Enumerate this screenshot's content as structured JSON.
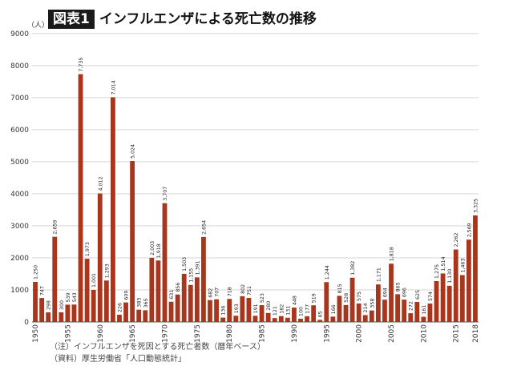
{
  "title": {
    "box": "図表1",
    "text": "インフルエンザによる死亡数の推移"
  },
  "notes": [
    "（注）インフルエンザを死因とする死亡者数（暦年ベース）",
    "（資料）厚生労働省「人口動態統計」"
  ],
  "chart_data": {
    "type": "bar",
    "title": "インフルエンザによる死亡数の推移",
    "ylabel": "（人）",
    "xlabel": "",
    "ylim": [
      0,
      9000
    ],
    "yticks": [
      "0",
      "1000",
      "2000",
      "3000",
      "4000",
      "5000",
      "6000",
      "7000",
      "8000",
      "9000"
    ],
    "x_tick_labels": [
      "1950",
      "1955",
      "1960",
      "1965",
      "1970",
      "1975",
      "1980",
      "1985",
      "1990",
      "1995",
      "2000",
      "2005",
      "2010",
      "2015",
      "2018"
    ],
    "bar_color": "#a8361d",
    "grid": true,
    "categories": [
      1950,
      1951,
      1952,
      1953,
      1954,
      1955,
      1956,
      1957,
      1958,
      1959,
      1960,
      1961,
      1962,
      1963,
      1964,
      1965,
      1966,
      1967,
      1968,
      1969,
      1970,
      1971,
      1972,
      1973,
      1974,
      1975,
      1976,
      1977,
      1978,
      1979,
      1980,
      1981,
      1982,
      1983,
      1984,
      1985,
      1986,
      1987,
      1988,
      1989,
      1990,
      1991,
      1992,
      1993,
      1994,
      1995,
      1996,
      1997,
      1998,
      1999,
      2000,
      2001,
      2002,
      2003,
      2004,
      2005,
      2006,
      2007,
      2008,
      2009,
      2010,
      2011,
      2012,
      2013,
      2014,
      2015,
      2016,
      2017,
      2018
    ],
    "values": [
      1250,
      747,
      298,
      2659,
      300,
      539,
      543,
      7735,
      1973,
      1001,
      4012,
      1293,
      7014,
      226,
      609,
      5024,
      383,
      365,
      2003,
      1918,
      3707,
      631,
      856,
      1503,
      1155,
      1391,
      2654,
      682,
      707,
      136,
      718,
      193,
      802,
      751,
      191,
      523,
      280,
      121,
      182,
      131,
      448,
      100,
      177,
      519,
      65,
      1244,
      166,
      815,
      528,
      1382,
      575,
      214,
      358,
      1171,
      694,
      1818,
      865,
      696,
      272,
      625,
      161,
      574,
      1275,
      1514,
      1130,
      2262,
      1463,
      2569,
      3325
    ],
    "labels": [
      "1,250",
      "747",
      "298",
      "2,659",
      "300",
      "539",
      "543",
      "7,735",
      "1,973",
      "1,001",
      "4,012",
      "1,293",
      "7,014",
      "226",
      "609",
      "5,024",
      "383",
      "365",
      "2,003",
      "1,918",
      "3,707",
      "631",
      "856",
      "1,503",
      "1,155",
      "1,391",
      "2,654",
      "682",
      "707",
      "136",
      "718",
      "193",
      "802",
      "751",
      "191",
      "523",
      "280",
      "121",
      "182",
      "131",
      "448",
      "100",
      "177",
      "519",
      "65",
      "1,244",
      "166",
      "815",
      "528",
      "1,382",
      "575",
      "214",
      "358",
      "1,171",
      "694",
      "1,818",
      "865",
      "696",
      "272",
      "625",
      "161",
      "574",
      "1,275",
      "1,514",
      "1,130",
      "2,262",
      "1,463",
      "2,569",
      "3,325"
    ]
  }
}
